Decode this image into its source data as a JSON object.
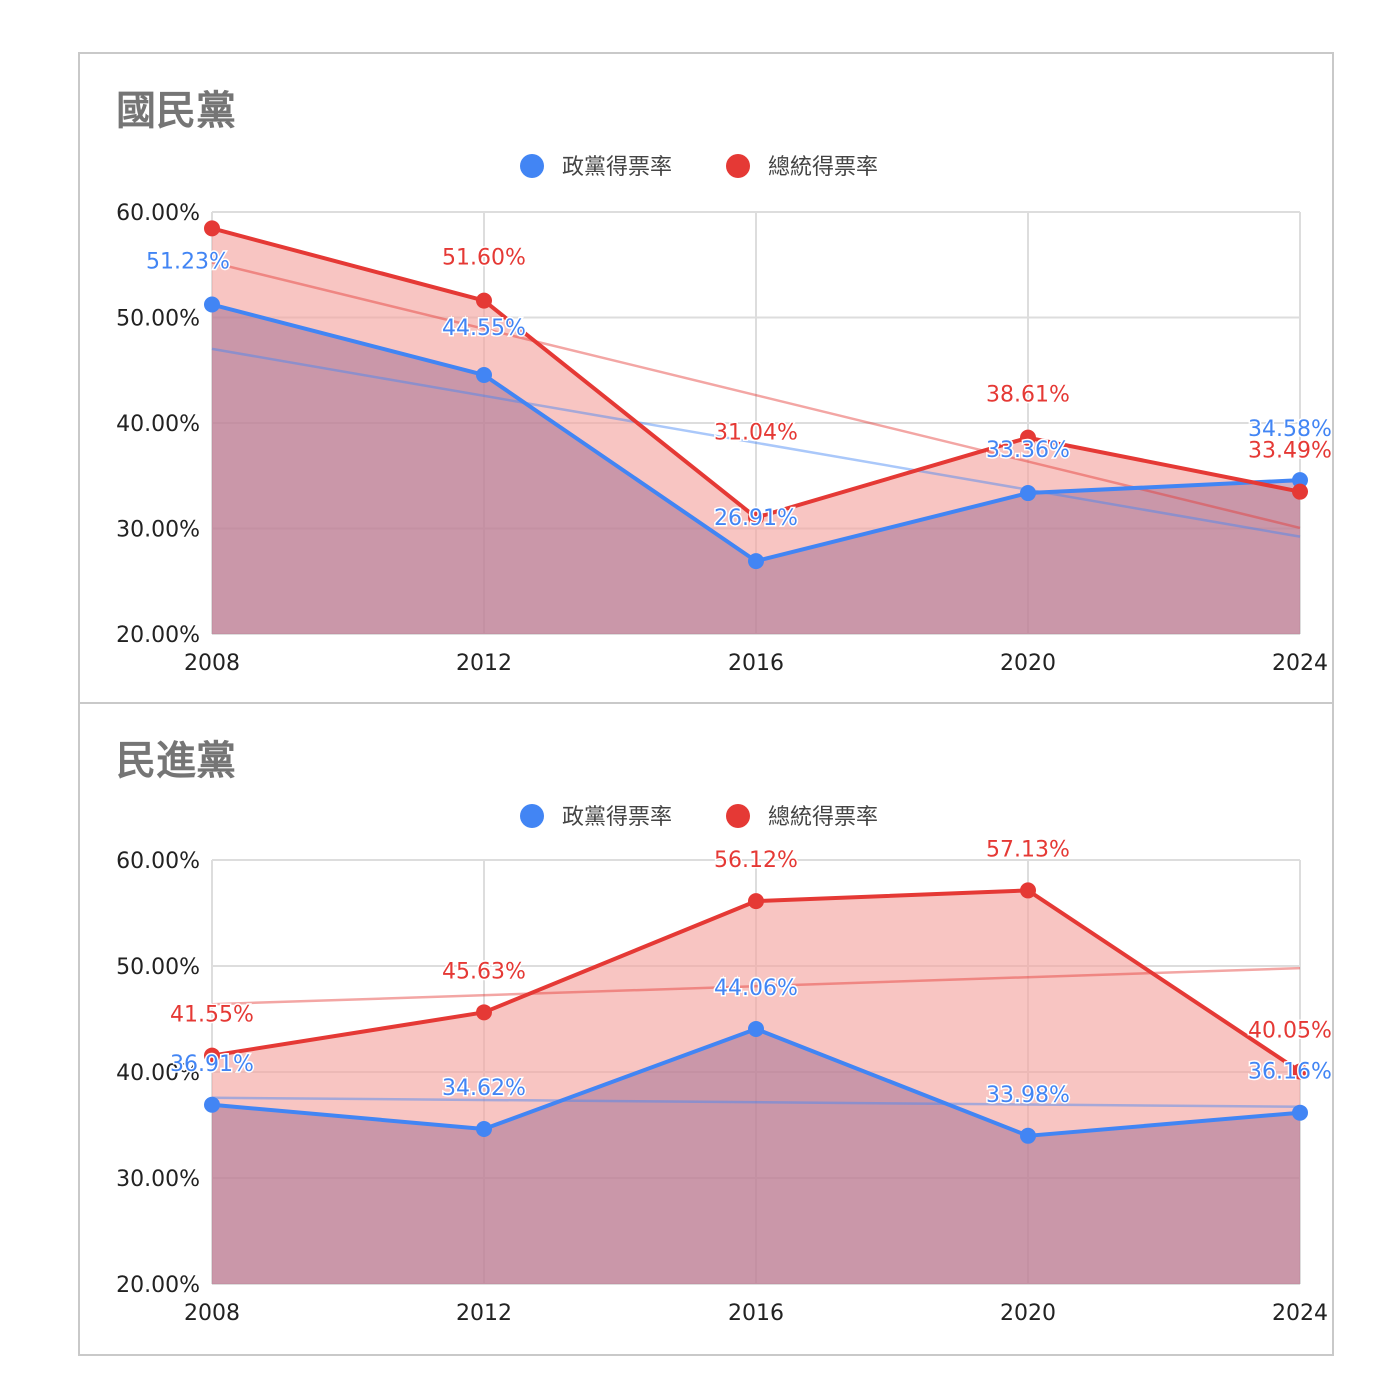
{
  "colors": {
    "party": "#4285f4",
    "president": "#e53935",
    "grid": "#dddddd"
  },
  "chart_data": [
    {
      "type": "area",
      "title": "國民黨",
      "categories": [
        "2008",
        "2012",
        "2016",
        "2020",
        "2024"
      ],
      "ylim": [
        0.2,
        0.6
      ],
      "yticks": [
        "20.00%",
        "30.00%",
        "40.00%",
        "50.00%",
        "60.00%"
      ],
      "grid": true,
      "legend": "top-center",
      "series": [
        {
          "name": "政黨得票率",
          "color": "#4285f4",
          "values": [
            0.5123,
            0.4455,
            0.2691,
            0.3336,
            0.3458
          ],
          "labels": [
            "51.23%",
            "44.55%",
            "26.91%",
            "33.36%",
            "34.58%"
          ],
          "trendline": true
        },
        {
          "name": "總統得票率",
          "color": "#e53935",
          "values": [
            0.5845,
            0.516,
            0.3104,
            0.3861,
            0.3349
          ],
          "labels": [
            "",
            "51.60%",
            "31.04%",
            "38.61%",
            "33.49%"
          ],
          "trendline": true
        }
      ]
    },
    {
      "type": "area",
      "title": "民進黨",
      "categories": [
        "2008",
        "2012",
        "2016",
        "2020",
        "2024"
      ],
      "ylim": [
        0.2,
        0.6
      ],
      "yticks": [
        "20.00%",
        "30.00%",
        "40.00%",
        "50.00%",
        "60.00%"
      ],
      "grid": true,
      "legend": "top-center",
      "series": [
        {
          "name": "政黨得票率",
          "color": "#4285f4",
          "values": [
            0.3691,
            0.3462,
            0.4406,
            0.3398,
            0.3616
          ],
          "labels": [
            "36.91%",
            "34.62%",
            "44.06%",
            "33.98%",
            "36.16%"
          ],
          "trendline": true
        },
        {
          "name": "總統得票率",
          "color": "#e53935",
          "values": [
            0.4155,
            0.4563,
            0.5612,
            0.5713,
            0.4005
          ],
          "labels": [
            "41.55%",
            "45.63%",
            "56.12%",
            "57.13%",
            "40.05%"
          ],
          "trendline": true
        }
      ]
    }
  ]
}
